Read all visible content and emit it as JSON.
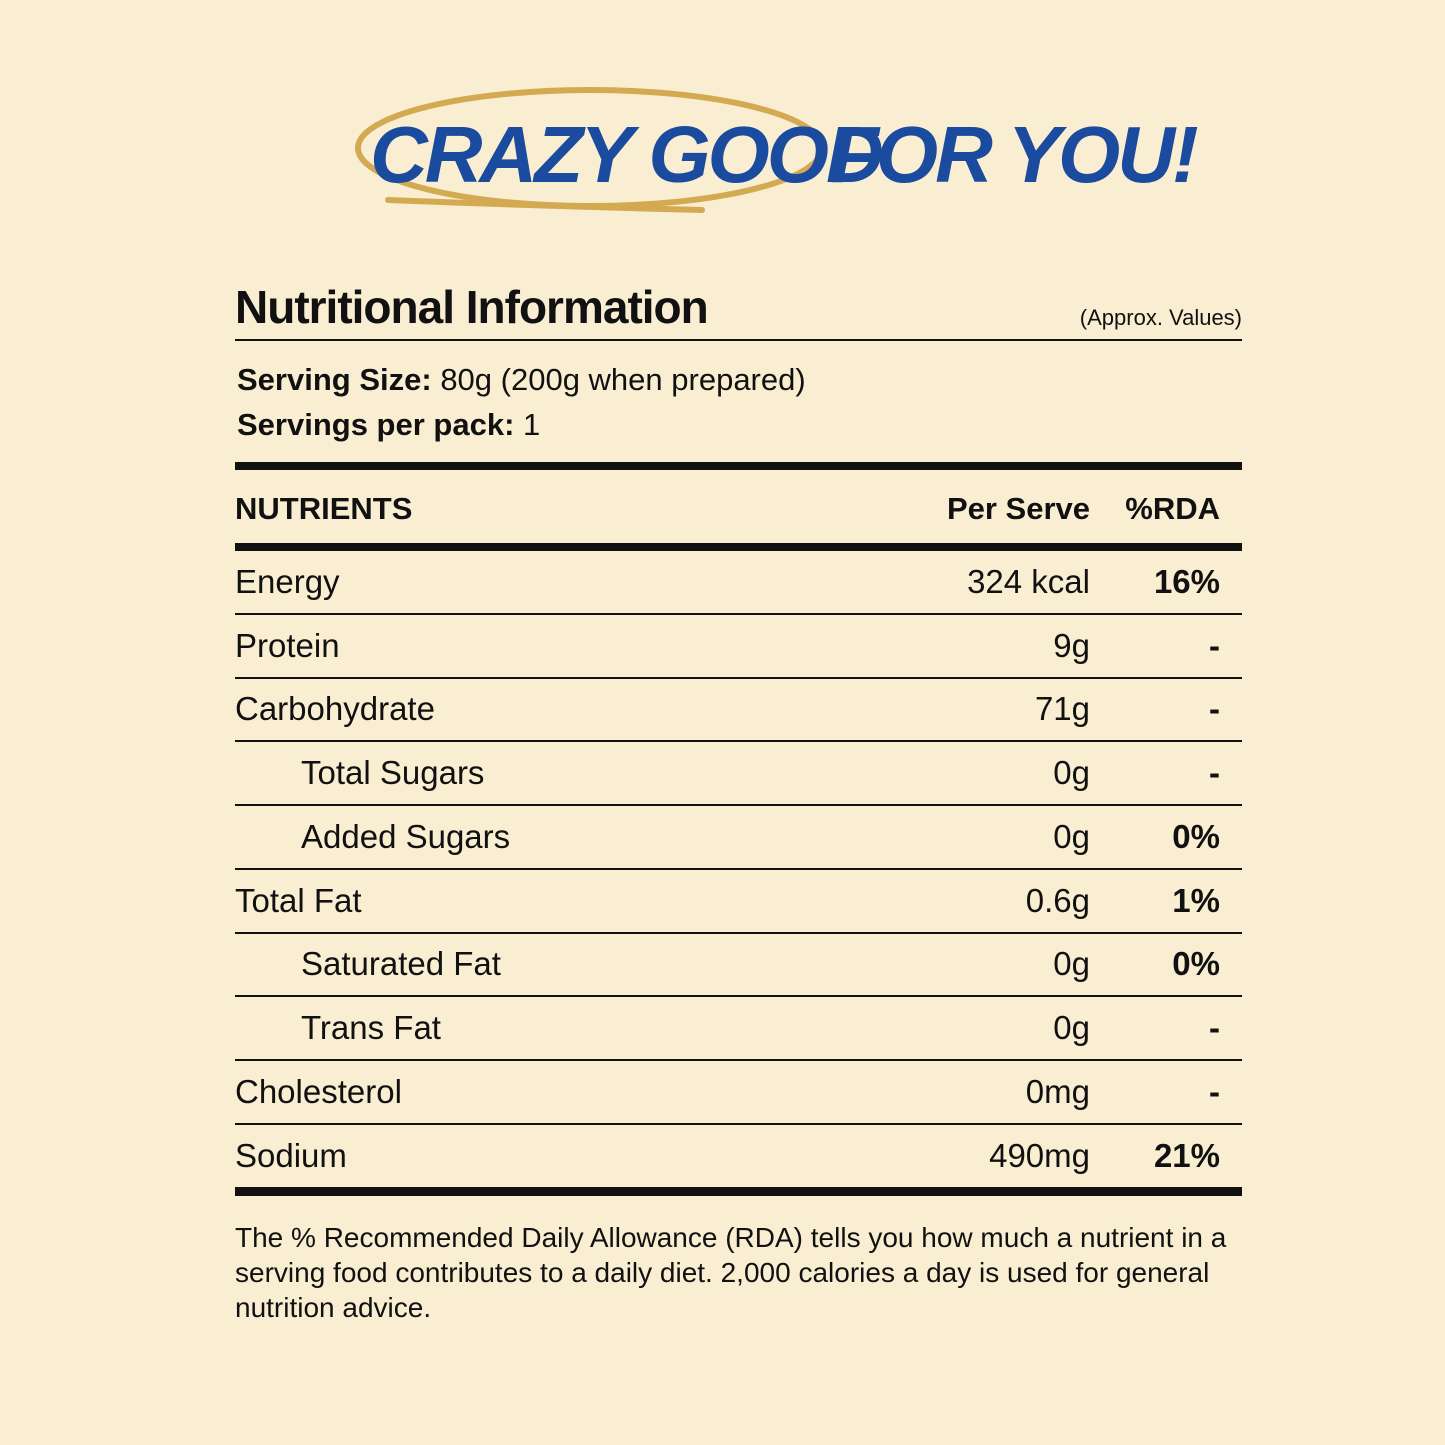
{
  "header": {
    "highlight": "CRAZY GOOD",
    "rest": "FOR YOU!"
  },
  "label": {
    "title": "Nutritional Information",
    "note": "(Approx. Values)",
    "serving_size": {
      "label": "Serving Size:",
      "value": "80g (200g when prepared)"
    },
    "servings": {
      "label": "Servings per pack:",
      "value": "1"
    }
  },
  "table": {
    "columns": [
      "NUTRIENTS",
      "Per Serve",
      "%RDA"
    ],
    "rows": [
      {
        "cells": [
          "Energy",
          "324 kcal",
          "16%"
        ],
        "indent": false
      },
      {
        "cells": [
          "Protein",
          "9g",
          "-"
        ],
        "indent": false
      },
      {
        "cells": [
          "Carbohydrate",
          "71g",
          "-"
        ],
        "indent": false
      },
      {
        "cells": [
          "Total Sugars",
          "0g",
          "-"
        ],
        "indent": true
      },
      {
        "cells": [
          "Added Sugars",
          "0g",
          "0%"
        ],
        "indent": true
      },
      {
        "cells": [
          "Total Fat",
          "0.6g",
          "1%"
        ],
        "indent": false
      },
      {
        "cells": [
          "Saturated Fat",
          "0g",
          "0%"
        ],
        "indent": true
      },
      {
        "cells": [
          "Trans Fat",
          "0g",
          "-"
        ],
        "indent": true
      },
      {
        "cells": [
          "Cholesterol",
          "0mg",
          "-"
        ],
        "indent": false
      },
      {
        "cells": [
          "Sodium",
          "490mg",
          "21%"
        ],
        "indent": false
      }
    ]
  },
  "footnote": "The % Recommended Daily Allowance (RDA) tells you how much a nutrient in a serving food contributes to a daily diet. 2,000 calories a day is used for general nutrition advice."
}
